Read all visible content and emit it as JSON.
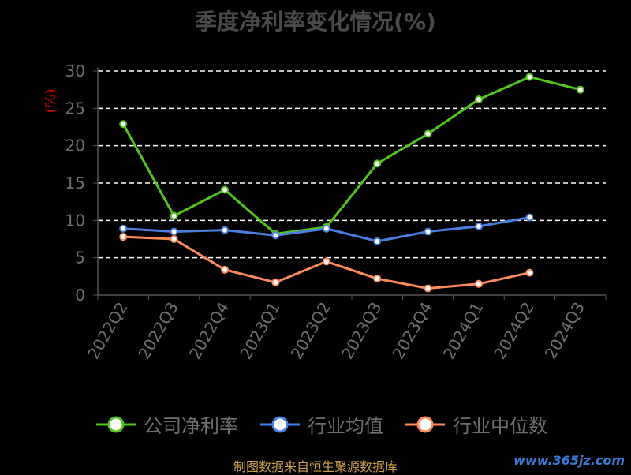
{
  "chart_data": {
    "type": "line",
    "title": "季度净利率变化情况(%)",
    "ylabel": "(%)",
    "xlabel": "",
    "categories": [
      "2022Q2",
      "2022Q3",
      "2022Q4",
      "2023Q1",
      "2023Q2",
      "2023Q3",
      "2023Q4",
      "2024Q1",
      "2024Q2",
      "2024Q3"
    ],
    "ylim": [
      0,
      30
    ],
    "yticks": [
      0,
      5,
      10,
      15,
      20,
      25,
      30
    ],
    "grid": true,
    "legend_position": "bottom",
    "series": [
      {
        "name": "公司净利率",
        "color": "#52c41a",
        "values": [
          22.9,
          10.6,
          14.1,
          8.2,
          9.1,
          17.6,
          21.6,
          26.2,
          29.2,
          27.5
        ]
      },
      {
        "name": "行业均值",
        "color": "#4a7fe0",
        "values": [
          8.9,
          8.5,
          8.7,
          8.0,
          8.9,
          7.2,
          8.5,
          9.2,
          10.4,
          null
        ]
      },
      {
        "name": "行业中位数",
        "color": "#ff8a5b",
        "values": [
          7.8,
          7.5,
          3.4,
          1.7,
          4.5,
          2.2,
          0.9,
          1.5,
          3.0,
          null
        ]
      }
    ]
  },
  "source": "制图数据来自恒生聚源数据库",
  "watermark": "www.365jz.com"
}
